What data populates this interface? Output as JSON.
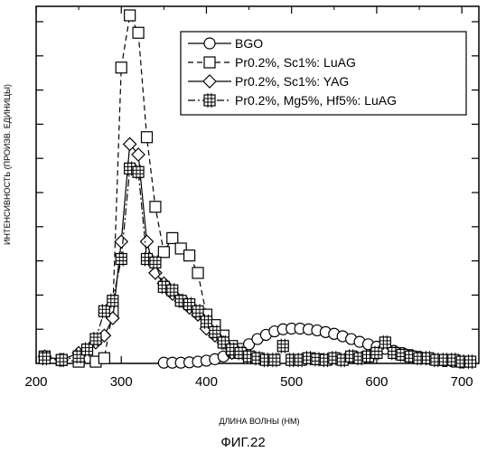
{
  "chart_data": {
    "type": "line",
    "xlabel": "ДЛИНА ВОЛНЫ (НМ)",
    "ylabel": "ИНТЕНСИВНОСТЬ (ПРОИЗВ. ЕДИНИЦЫ)",
    "caption": "ФИГ.22",
    "xlim": [
      200,
      720
    ],
    "ylim": [
      0,
      10
    ],
    "xticks": [
      200,
      300,
      400,
      500,
      600,
      700
    ],
    "yticks_count": 10,
    "ytick_labels_shown": false,
    "legend_position": "top-right",
    "series": [
      {
        "name": "BGO",
        "marker": "circle",
        "dash": "solid",
        "x": [
          350,
          360,
          370,
          380,
          390,
          400,
          410,
          420,
          430,
          440,
          450,
          460,
          470,
          480,
          490,
          500,
          510,
          520,
          530,
          540,
          550,
          560,
          570,
          580,
          590,
          600,
          610,
          620,
          630,
          640,
          650,
          660,
          670,
          680,
          690,
          700
        ],
        "y": [
          0.02,
          0.02,
          0.02,
          0.03,
          0.05,
          0.08,
          0.12,
          0.2,
          0.3,
          0.42,
          0.55,
          0.7,
          0.82,
          0.92,
          0.98,
          1.0,
          1.0,
          0.98,
          0.95,
          0.9,
          0.85,
          0.78,
          0.7,
          0.62,
          0.55,
          0.48,
          0.42,
          0.36,
          0.3,
          0.24,
          0.19,
          0.14,
          0.1,
          0.07,
          0.05,
          0.03
        ]
      },
      {
        "name": "Pr0.2%, Sc1%: LuAG",
        "marker": "square",
        "dash": "dashed",
        "x": [
          210,
          230,
          250,
          270,
          280,
          290,
          300,
          310,
          320,
          330,
          340,
          350,
          360,
          370,
          380,
          390,
          400,
          410,
          420,
          430,
          440,
          450
        ],
        "y": [
          0.2,
          0.1,
          0.05,
          0.05,
          0.15,
          1.5,
          8.5,
          10.0,
          9.5,
          6.5,
          4.5,
          3.2,
          3.6,
          3.3,
          3.1,
          2.6,
          1.4,
          1.1,
          0.8,
          0.5,
          0.3,
          0.15
        ]
      },
      {
        "name": "Pr0.2%, Sc1%: YAG",
        "marker": "diamond",
        "dash": "solid",
        "x": [
          210,
          230,
          250,
          270,
          280,
          290,
          300,
          310,
          320,
          330,
          340,
          350,
          360,
          370,
          380,
          390,
          400,
          410,
          420,
          430
        ],
        "y": [
          0.2,
          0.1,
          0.3,
          0.6,
          0.8,
          1.3,
          3.5,
          6.3,
          6.0,
          3.5,
          2.6,
          2.3,
          2.0,
          1.8,
          1.6,
          1.4,
          1.0,
          0.8,
          0.6,
          0.3
        ]
      },
      {
        "name": "Pr0.2%, Mg5%, Hf5%: LuAG",
        "marker": "hashsquare",
        "dash": "dashdot",
        "x": [
          210,
          230,
          250,
          260,
          270,
          280,
          290,
          300,
          310,
          320,
          330,
          340,
          350,
          360,
          370,
          380,
          390,
          400,
          410,
          420,
          430,
          440,
          450,
          460,
          470,
          480,
          490,
          500,
          510,
          520,
          530,
          540,
          550,
          560,
          570,
          580,
          590,
          600,
          610,
          620,
          630,
          640,
          650,
          660,
          670,
          680,
          690,
          700,
          710
        ],
        "y": [
          0.15,
          0.1,
          0.2,
          0.4,
          0.7,
          1.5,
          1.8,
          3.0,
          5.6,
          5.5,
          3.0,
          2.9,
          2.2,
          2.1,
          1.8,
          1.7,
          1.5,
          1.2,
          0.9,
          0.6,
          0.4,
          0.3,
          0.2,
          0.15,
          0.1,
          0.1,
          0.5,
          0.1,
          0.1,
          0.15,
          0.12,
          0.1,
          0.15,
          0.1,
          0.2,
          0.15,
          0.2,
          0.3,
          0.6,
          0.3,
          0.25,
          0.2,
          0.15,
          0.15,
          0.1,
          0.1,
          0.1,
          0.05,
          0.05
        ]
      }
    ]
  }
}
